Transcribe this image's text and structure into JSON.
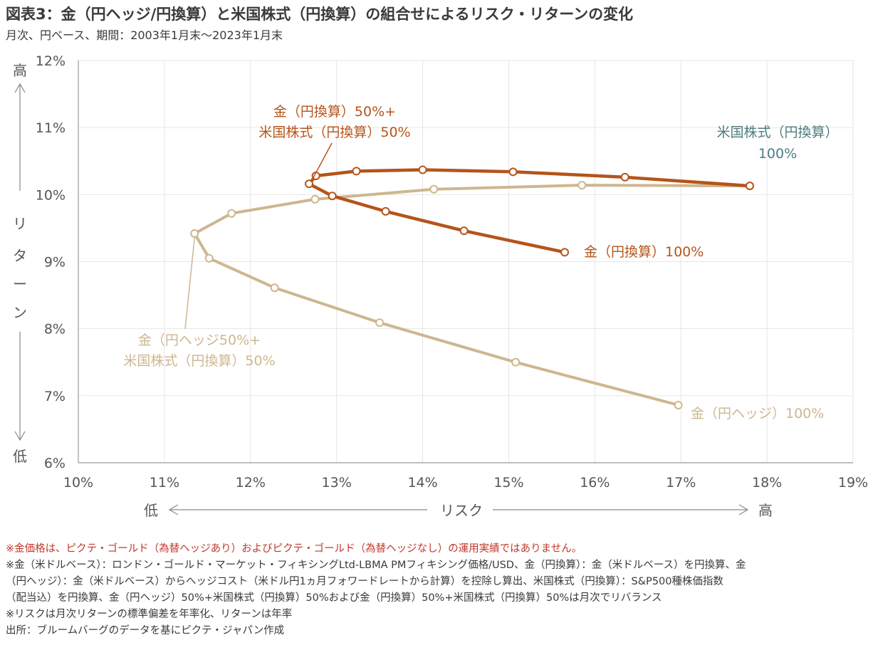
{
  "title": "図表3：金（円ヘッジ/円換算）と米国株式（円換算）の組合せによるリスク・リターンの変化",
  "subtitle": "月次、円ベース、期間：2003年1月末～2023年1月末",
  "colors": {
    "unhedged": "#b5541a",
    "hedged": "#cdb78f",
    "stock_label": "#4d7c80",
    "grid": "#e6e6e6",
    "axis": "#9a9a9a",
    "note_red": "#c0392b"
  },
  "chart_data": {
    "type": "line",
    "x_axis": {
      "ticks": [
        "10%",
        "11%",
        "12%",
        "13%",
        "14%",
        "15%",
        "16%",
        "17%",
        "18%",
        "19%"
      ],
      "range": [
        10,
        19
      ],
      "low_label": "低",
      "center_label": "リスク",
      "high_label": "高"
    },
    "y_axis": {
      "ticks": [
        "6%",
        "7%",
        "8%",
        "9%",
        "10%",
        "11%",
        "12%"
      ],
      "range": [
        6,
        12
      ],
      "low_label": "低",
      "high_label": "高",
      "label_chars": [
        "リ",
        "タ",
        "ー",
        "ン"
      ]
    },
    "series": [
      {
        "key": "unhedged",
        "points": [
          [
            15.65,
            9.14
          ],
          [
            14.48,
            9.46
          ],
          [
            13.57,
            9.75
          ],
          [
            12.95,
            9.98
          ],
          [
            12.68,
            10.16
          ],
          [
            12.76,
            10.28
          ],
          [
            13.23,
            10.35
          ],
          [
            14.0,
            10.37
          ],
          [
            15.05,
            10.34
          ],
          [
            16.35,
            10.26
          ],
          [
            17.8,
            10.13
          ]
        ]
      },
      {
        "key": "hedged",
        "points": [
          [
            16.97,
            6.86
          ],
          [
            15.08,
            7.5
          ],
          [
            13.5,
            8.09
          ],
          [
            12.28,
            8.61
          ],
          [
            11.52,
            9.05
          ],
          [
            11.35,
            9.42
          ],
          [
            11.78,
            9.72
          ],
          [
            12.75,
            9.93
          ],
          [
            14.13,
            10.08
          ],
          [
            15.85,
            10.14
          ],
          [
            17.8,
            10.13
          ]
        ]
      }
    ],
    "annotations": [
      {
        "key": "unhedged_mix",
        "lines": [
          "金（円換算）50%+",
          "米国株式（円換算）50%"
        ]
      },
      {
        "key": "stock",
        "lines": [
          "米国株式（円換算）",
          "100%"
        ]
      },
      {
        "key": "gold_unhedged",
        "lines": [
          "金（円換算）100%"
        ]
      },
      {
        "key": "hedged_mix",
        "lines": [
          "金（円ヘッジ50%+",
          "米国株式（円換算）50%"
        ]
      },
      {
        "key": "gold_hedged",
        "lines": [
          "金（円ヘッジ）100%"
        ]
      }
    ]
  },
  "notes": [
    "※金価格は、ピクテ・ゴールド（為替ヘッジあり）およびピクテ・ゴールド（為替ヘッジなし）の運用実績ではありません。",
    "※金（米ドルベース）：ロンドン・ゴールド・マーケット・フィキシングLtd-LBMA PMフィキシング価格/USD、金（円換算）：金（米ドルベース）を円換算、金",
    "（円ヘッジ）：金（米ドルベース）からヘッジコスト（米ドル円1ヵ月フォワードレートから計算）を控除し算出、米国株式（円換算）：S&P500種株価指数",
    "（配当込）を円換算、金（円ヘッジ）50%+米国株式（円換算）50%および金（円換算）50%+米国株式（円換算）50%は月次でリバランス",
    "※リスクは月次リターンの標準偏差を年率化、リターンは年率",
    "出所：ブルームバーグのデータを基にピクテ・ジャパン作成"
  ]
}
